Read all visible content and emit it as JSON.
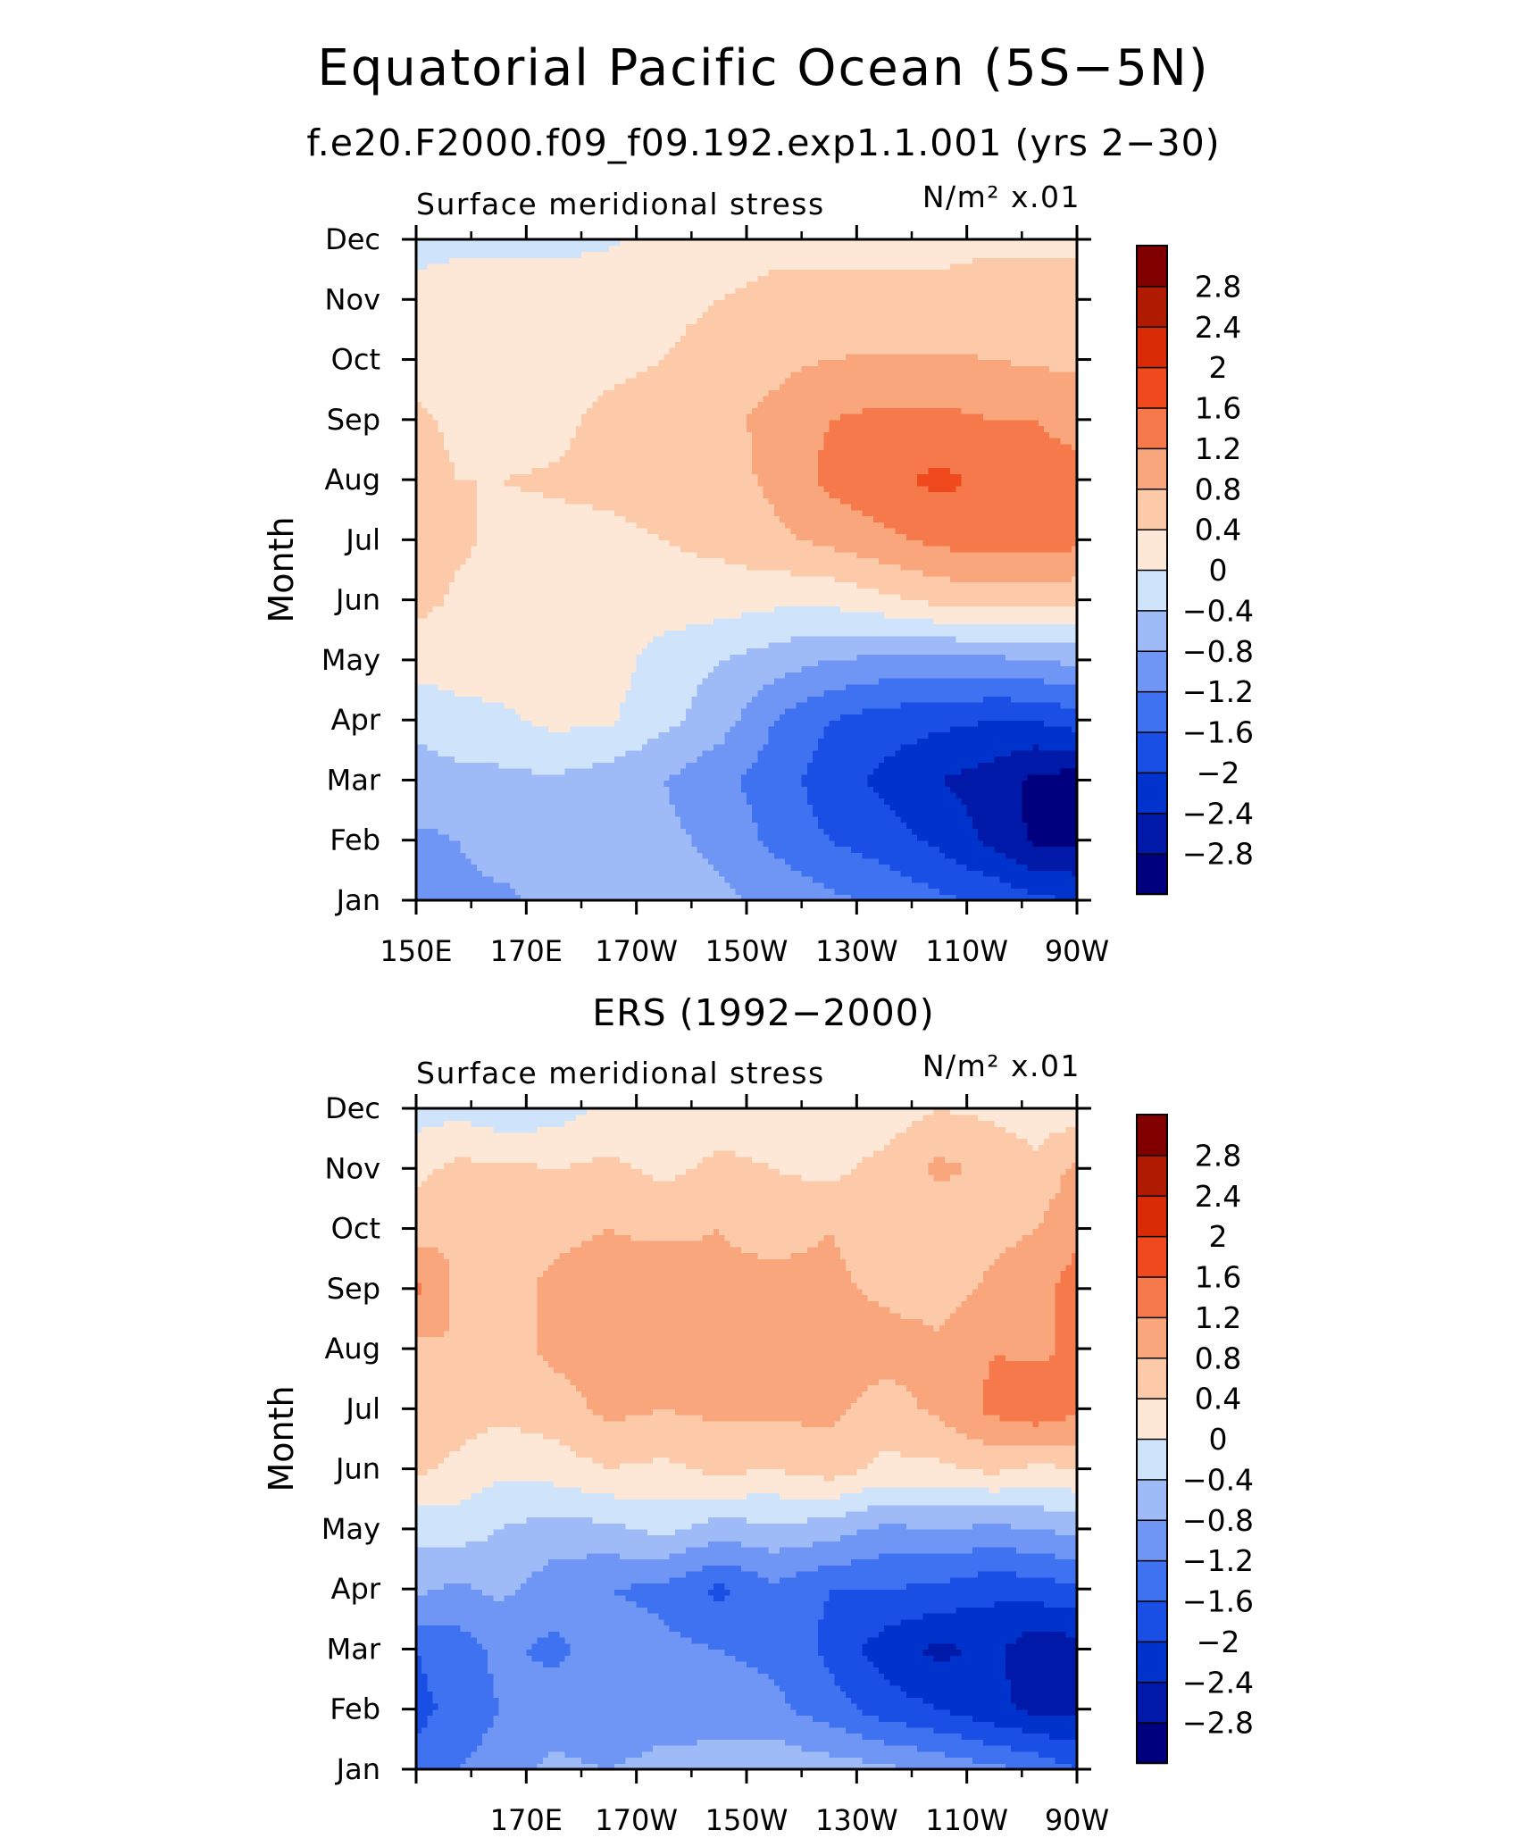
{
  "figure": {
    "title": "Equatorial Pacific Ocean (5S−5N)",
    "subtitle": "f.e20.F2000.f09_f09.192.exp1.1.001 (yrs 2−30)"
  },
  "chart_data": [
    {
      "type": "heatmap",
      "panel_title": "",
      "left_label": "Surface meridional stress",
      "right_label": "N/m² x.01",
      "ylabel": "Month",
      "xlabel": "",
      "x_ticklabels": [
        "150E",
        "170E",
        "170W",
        "150W",
        "130W",
        "110W",
        "90W"
      ],
      "y_ticklabels": [
        "Jan",
        "Feb",
        "Mar",
        "Apr",
        "May",
        "Jun",
        "Jul",
        "Aug",
        "Sep",
        "Oct",
        "Nov",
        "Dec"
      ],
      "x_lon_east": [
        150,
        170,
        190,
        210,
        230,
        250,
        270
      ],
      "colorbar": {
        "levels": [
          "−2.8",
          "−2.4",
          "−2",
          "−1.6",
          "−1.2",
          "−0.8",
          "−0.4",
          "0",
          "0.4",
          "0.8",
          "1.2",
          "1.6",
          "2",
          "2.4",
          "2.8"
        ],
        "colors": [
          "#00007f",
          "#0019a8",
          "#0033cc",
          "#1a4fe6",
          "#3f72f0",
          "#6f95f5",
          "#9fbbf7",
          "#cfe3fb",
          "#fde8d8",
          "#fcc9a9",
          "#f9a67c",
          "#f5794a",
          "#f0491e",
          "#d92b05",
          "#b01a00",
          "#800000"
        ]
      },
      "grid_lon": [
        150,
        157.5,
        165,
        175,
        185,
        195,
        205,
        215,
        225,
        235,
        245,
        255,
        262.5,
        270
      ],
      "values": [
        [
          -0.9,
          -0.9,
          -0.9,
          -0.7,
          -0.7,
          -0.7,
          -0.7,
          -0.9,
          -1.1,
          -1.3,
          -1.5,
          -1.7,
          -1.9,
          -2.0
        ],
        [
          -0.9,
          -0.8,
          -0.6,
          -0.6,
          -0.7,
          -0.7,
          -0.9,
          -1.3,
          -1.6,
          -1.8,
          -2.1,
          -2.5,
          -2.9,
          -2.9
        ],
        [
          -0.5,
          -0.5,
          -0.5,
          -0.45,
          -0.6,
          -0.8,
          -1.1,
          -1.4,
          -1.8,
          -2.1,
          -2.4,
          -2.6,
          -2.9,
          -3.0
        ],
        [
          -0.35,
          -0.2,
          -0.1,
          0.1,
          0.05,
          -0.3,
          -0.6,
          -1.2,
          -1.6,
          -1.8,
          -1.9,
          -2.0,
          -2.0,
          -1.8
        ],
        [
          0.2,
          0.25,
          0.25,
          0.2,
          0.2,
          -0.2,
          -0.4,
          -0.6,
          -0.8,
          -0.9,
          -0.9,
          -0.9,
          -0.8,
          -0.7
        ],
        [
          0.5,
          0.35,
          0.3,
          0.3,
          0.3,
          0.25,
          0.2,
          0.1,
          0.1,
          0.3,
          0.5,
          0.6,
          0.6,
          0.5
        ],
        [
          0.5,
          0.45,
          0.35,
          0.35,
          0.35,
          0.4,
          0.5,
          0.7,
          0.9,
          1.1,
          1.3,
          1.4,
          1.4,
          1.3
        ],
        [
          0.5,
          0.4,
          0.4,
          0.42,
          0.45,
          0.5,
          0.6,
          0.9,
          1.3,
          1.5,
          1.7,
          1.5,
          1.3,
          1.3
        ],
        [
          0.45,
          0.35,
          0.3,
          0.35,
          0.45,
          0.5,
          0.7,
          0.9,
          1.2,
          1.3,
          1.3,
          1.2,
          1.2,
          1.1
        ],
        [
          0.3,
          0.3,
          0.3,
          0.3,
          0.35,
          0.4,
          0.55,
          0.7,
          0.8,
          0.85,
          0.85,
          0.8,
          0.75,
          0.7
        ],
        [
          0.1,
          0.2,
          0.2,
          0.2,
          0.25,
          0.3,
          0.4,
          0.5,
          0.5,
          0.5,
          0.5,
          0.55,
          0.55,
          0.55
        ],
        [
          -0.1,
          -0.1,
          -0.1,
          -0.1,
          -0.05,
          0.1,
          0.2,
          0.3,
          0.3,
          0.3,
          0.3,
          0.35,
          0.35,
          0.35
        ]
      ]
    },
    {
      "type": "heatmap",
      "panel_title": "ERS (1992−2000)",
      "left_label": "Surface meridional stress",
      "right_label": "N/m² x.01",
      "ylabel": "Month",
      "xlabel": "",
      "x_ticklabels": [
        "",
        "170E",
        "170W",
        "150W",
        "130W",
        "110W",
        "90W"
      ],
      "y_ticklabels": [
        "Jan",
        "Feb",
        "Mar",
        "Apr",
        "May",
        "Jun",
        "Jul",
        "Aug",
        "Sep",
        "Oct",
        "Nov",
        "Dec"
      ],
      "x_lon_east": [
        150,
        170,
        190,
        210,
        230,
        250,
        270
      ],
      "colorbar": {
        "levels": [
          "−2.8",
          "−2.4",
          "−2",
          "−1.6",
          "−1.2",
          "−0.8",
          "−0.4",
          "0",
          "0.4",
          "0.8",
          "1.2",
          "1.6",
          "2",
          "2.4",
          "2.8"
        ],
        "colors": [
          "#00007f",
          "#0019a8",
          "#0033cc",
          "#1a4fe6",
          "#3f72f0",
          "#6f95f5",
          "#9fbbf7",
          "#cfe3fb",
          "#fde8d8",
          "#fcc9a9",
          "#f9a67c",
          "#f5794a",
          "#f0491e",
          "#d92b05",
          "#b01a00",
          "#800000"
        ]
      },
      "grid_lon": [
        150,
        157.5,
        165,
        175,
        185,
        195,
        205,
        215,
        225,
        235,
        245,
        255,
        262.5,
        270
      ],
      "values": [
        [
          -1.5,
          -1.2,
          -1.0,
          -0.7,
          -0.8,
          -0.6,
          -0.6,
          -0.5,
          -0.6,
          -0.7,
          -0.9,
          -1.1,
          -1.3,
          -1.6
        ],
        [
          -1.7,
          -1.5,
          -1.2,
          -1.0,
          -1.2,
          -1.1,
          -1.0,
          -1.1,
          -1.4,
          -1.8,
          -2.0,
          -2.3,
          -2.5,
          -2.5
        ],
        [
          -1.6,
          -1.4,
          -1.1,
          -1.3,
          -1.0,
          -1.1,
          -1.2,
          -1.3,
          -1.7,
          -2.2,
          -2.5,
          -2.3,
          -2.7,
          -2.6
        ],
        [
          -0.7,
          -0.9,
          -0.7,
          -1.0,
          -1.2,
          -1.3,
          -1.7,
          -1.3,
          -1.6,
          -1.6,
          -1.7,
          -1.9,
          -1.8,
          -1.7
        ],
        [
          -0.3,
          -0.2,
          -0.4,
          -0.6,
          -0.5,
          -0.3,
          -0.6,
          -0.5,
          -0.6,
          -0.9,
          -0.8,
          -0.9,
          -0.8,
          -0.7
        ],
        [
          0.5,
          0.3,
          0.1,
          0.2,
          0.4,
          0.3,
          0.5,
          0.4,
          0.6,
          0.3,
          0.3,
          0.5,
          0.3,
          0.4
        ],
        [
          0.7,
          0.6,
          0.5,
          0.6,
          0.9,
          0.8,
          0.9,
          0.9,
          0.9,
          0.6,
          0.9,
          1.3,
          1.5,
          1.3
        ],
        [
          0.7,
          0.8,
          0.6,
          0.9,
          1.0,
          0.9,
          1.0,
          1.1,
          1.1,
          1.0,
          0.9,
          1.2,
          1.1,
          1.3
        ],
        [
          1.3,
          0.7,
          0.6,
          0.9,
          1.0,
          1.1,
          0.9,
          1.0,
          0.9,
          0.7,
          0.6,
          0.9,
          1.0,
          1.4
        ],
        [
          0.6,
          0.8,
          0.6,
          0.7,
          0.8,
          0.7,
          0.8,
          0.6,
          0.8,
          0.6,
          0.4,
          0.7,
          0.8,
          1.1
        ],
        [
          0.3,
          0.5,
          0.5,
          0.4,
          0.5,
          0.3,
          0.5,
          0.4,
          0.3,
          0.5,
          0.9,
          0.7,
          0.5,
          0.9
        ],
        [
          -0.2,
          -0.1,
          -0.3,
          -0.2,
          0.1,
          0.1,
          0.2,
          0.2,
          0.3,
          0.2,
          0.4,
          0.3,
          0.2,
          0.2
        ]
      ]
    }
  ]
}
